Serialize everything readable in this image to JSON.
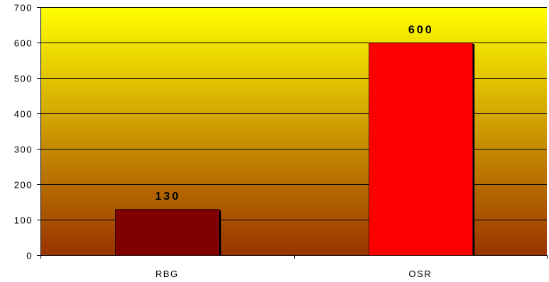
{
  "chart_data": {
    "type": "bar",
    "categories": [
      "RBG",
      "OSR"
    ],
    "values": [
      130,
      600
    ],
    "data_labels": [
      "130",
      "600"
    ],
    "bar_colors": [
      "#800000",
      "#ff0000"
    ],
    "background_gradient": [
      "#ffff00",
      "#993300"
    ],
    "ylim": [
      0,
      700
    ],
    "yticks": [
      0,
      100,
      200,
      300,
      400,
      500,
      600,
      700
    ],
    "ytick_labels": [
      "0",
      "100",
      "200",
      "300",
      "400",
      "500",
      "600",
      "700"
    ],
    "grid": true,
    "title": "",
    "xlabel": "",
    "ylabel": ""
  }
}
